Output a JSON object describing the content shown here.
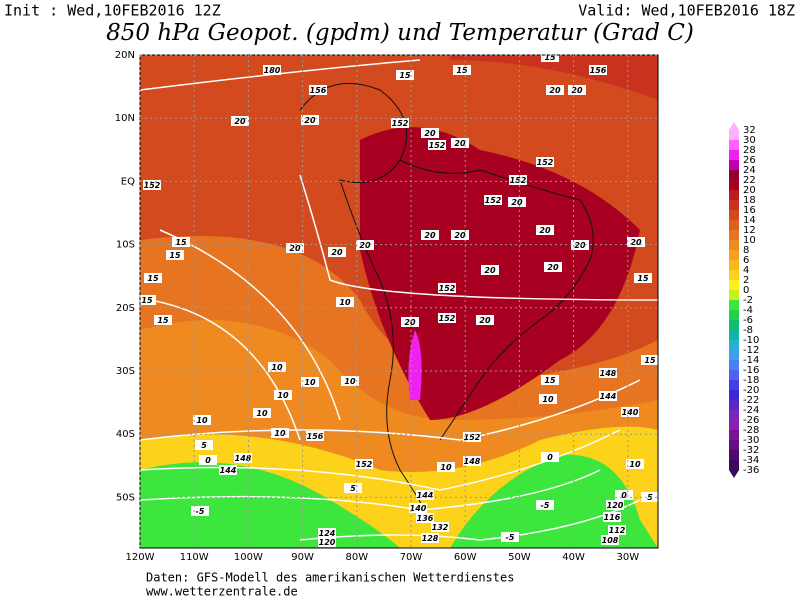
{
  "header": {
    "init": "Init : Wed,10FEB2016 12Z",
    "valid": "Valid: Wed,10FEB2016 18Z",
    "title": "850 hPa Geopot. (gpdm) und Temperatur (Grad C)"
  },
  "map": {
    "lon_labels": [
      "120W",
      "110W",
      "100W",
      "90W",
      "80W",
      "70W",
      "60W",
      "50W",
      "40W",
      "30W"
    ],
    "lat_labels": [
      "20N",
      "10N",
      "EQ",
      "10S",
      "20S",
      "30S",
      "40S",
      "50S"
    ],
    "contour_labels": [
      152,
      20,
      20,
      152,
      20,
      152,
      20,
      152,
      20,
      20,
      156,
      152,
      152,
      20,
      20,
      20,
      20,
      20,
      20,
      20,
      15,
      15,
      15,
      15,
      15,
      20,
      20,
      20,
      152,
      152,
      20,
      20,
      10,
      10,
      10,
      10,
      10,
      10,
      10,
      10,
      156,
      152,
      15,
      148,
      10,
      144,
      140,
      5,
      0,
      148,
      144,
      152,
      10,
      148,
      0,
      -5,
      -5,
      -5,
      124,
      120,
      144,
      140,
      136,
      132,
      128,
      120,
      116,
      112,
      108,
      5,
      0,
      5,
      10,
      15,
      15,
      20,
      180,
      156,
      15,
      15,
      15
    ]
  },
  "colorbar": {
    "levels": [
      32,
      30,
      28,
      26,
      24,
      22,
      20,
      18,
      16,
      14,
      12,
      10,
      8,
      6,
      4,
      2,
      0,
      -2,
      -4,
      -6,
      -8,
      -10,
      -12,
      -14,
      -16,
      -18,
      -20,
      -22,
      -24,
      -26,
      -28,
      -30,
      -32,
      -34,
      -36
    ],
    "colors": [
      "#ffb0ff",
      "#ff60ff",
      "#f020f0",
      "#c000b0",
      "#900030",
      "#a80020",
      "#b91c1c",
      "#c8321e",
      "#d24a1e",
      "#dc6020",
      "#e67420",
      "#ee8a20",
      "#f5a01e",
      "#f8b81e",
      "#fcd21a",
      "#fff01a",
      "#c8f01e",
      "#3ce63c",
      "#1ed250",
      "#10be6e",
      "#10b4a0",
      "#20b4d2",
      "#40a0f0",
      "#4a80f5",
      "#5060f0",
      "#4040e6",
      "#3c28d2",
      "#5a28c8",
      "#7828be",
      "#8c1eb4",
      "#7a1496",
      "#640f82",
      "#500a6e",
      "#3c0a5a"
    ]
  },
  "footer": {
    "source": "Daten: GFS-Modell des amerikanischen Wetterdienstes",
    "url": "www.wetterzentrale.de"
  }
}
